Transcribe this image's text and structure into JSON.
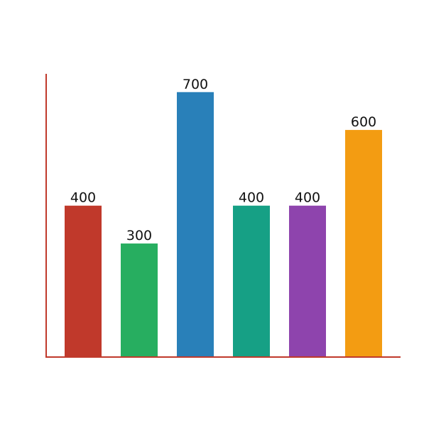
{
  "chart_data": {
    "type": "bar",
    "categories": [
      "",
      "",
      "",
      "",
      "",
      ""
    ],
    "values": [
      400,
      300,
      700,
      400,
      400,
      600
    ],
    "value_labels": [
      "400",
      "300",
      "700",
      "400",
      "400",
      "600"
    ],
    "ylim": [
      0,
      750
    ],
    "grid": false,
    "legend": "none",
    "axis_color": "#c0392b",
    "bar_colors": [
      "#c0392b",
      "#27ae60",
      "#2980b9",
      "#16a085",
      "#8e44ad",
      "#f39c12"
    ]
  }
}
